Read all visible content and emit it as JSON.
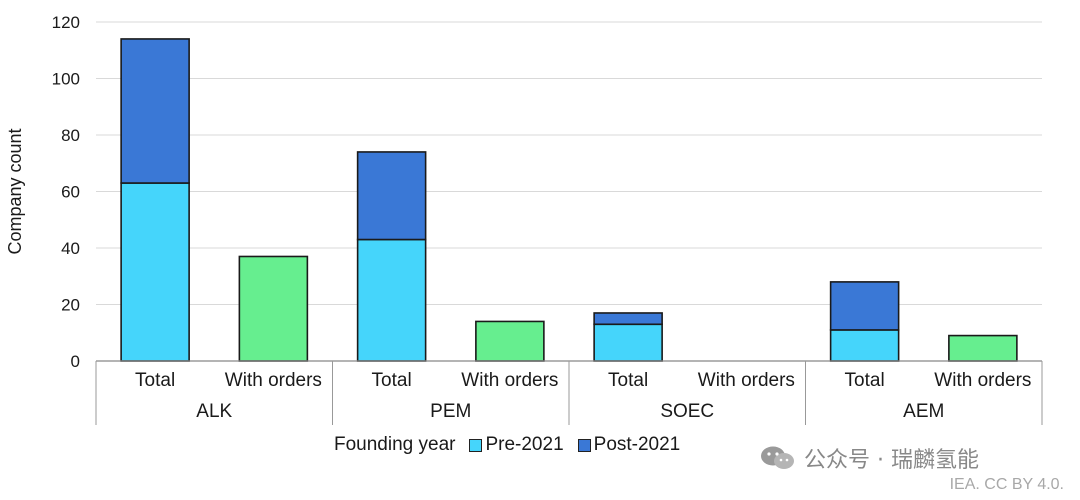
{
  "chart_data": {
    "type": "bar",
    "stacked": true,
    "ylabel": "Company count",
    "ylim": [
      0,
      120
    ],
    "yticks": [
      0,
      20,
      40,
      60,
      80,
      100,
      120
    ],
    "grid": true,
    "legend_title": "Founding year",
    "legend_position": "bottom",
    "groups": [
      "ALK",
      "PEM",
      "SOEC",
      "AEM"
    ],
    "subcategories": [
      "Total",
      "With orders"
    ],
    "series": [
      {
        "name": "Pre-2021",
        "color": "#45d5fb",
        "values": [
          63,
          null,
          43,
          null,
          13,
          null,
          11,
          null
        ]
      },
      {
        "name": "Post-2021",
        "color": "#3a78d6",
        "values": [
          51,
          null,
          31,
          null,
          4,
          null,
          17,
          null
        ]
      },
      {
        "name": "With orders",
        "color": "#66ee8f",
        "values": [
          null,
          37,
          null,
          14,
          null,
          0,
          null,
          9
        ]
      }
    ]
  },
  "watermark": {
    "text": "公众号 · 瑞麟氢能",
    "icon": "wechat-icon"
  },
  "credit": "IEA. CC BY 4.0."
}
